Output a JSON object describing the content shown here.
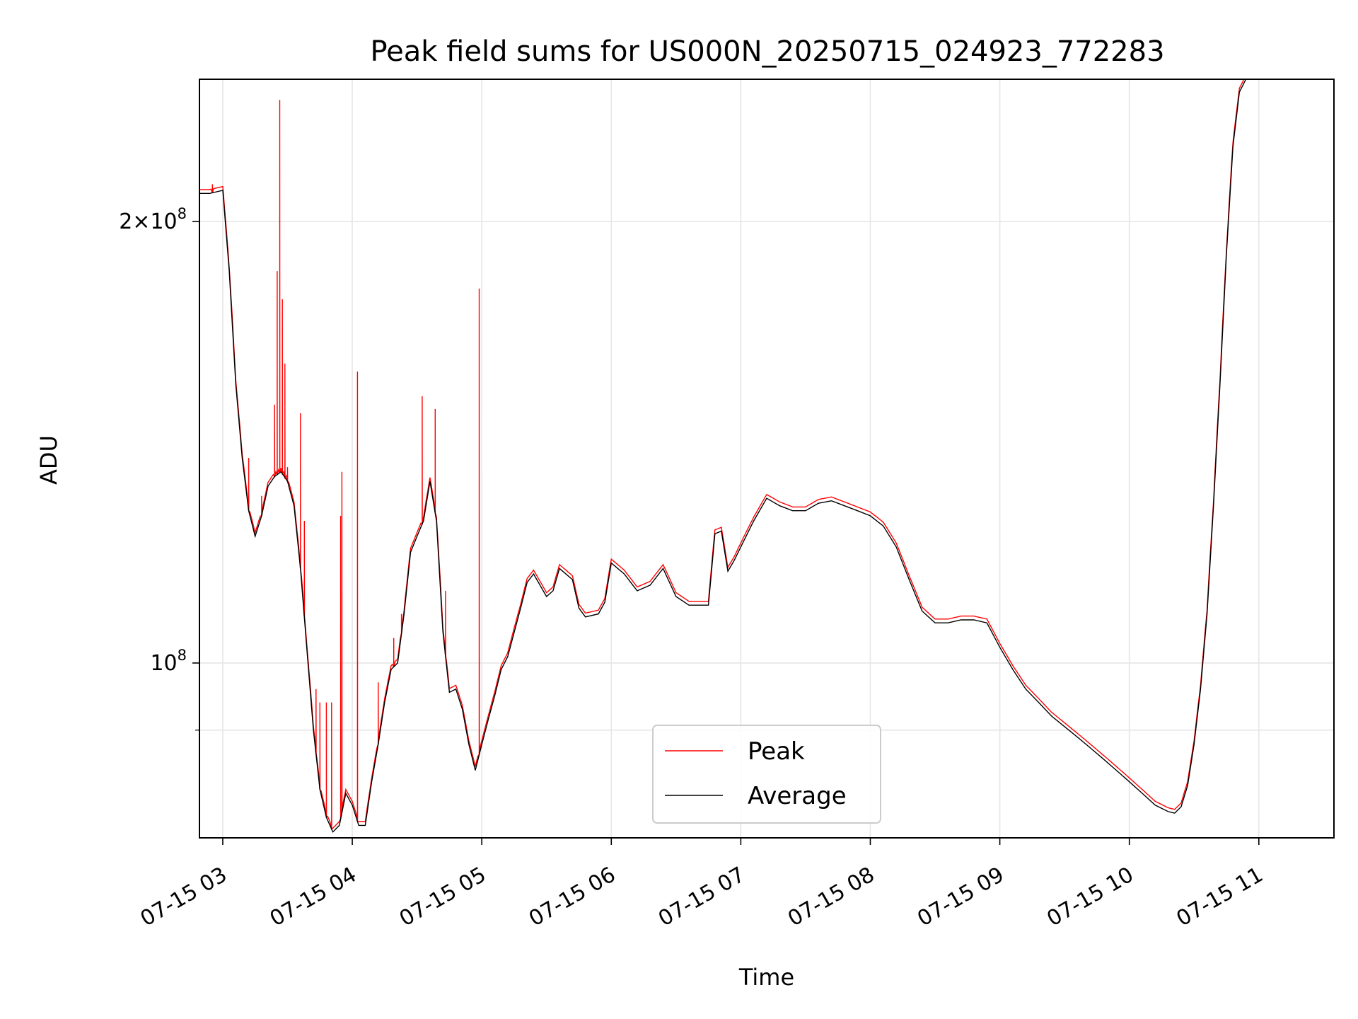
{
  "chart_data": {
    "type": "line",
    "title": "Peak field sums for US000N_20250715_024923_772283",
    "xlabel": "Time",
    "ylabel": "ADU",
    "x_tick_labels": [
      "07-15 03",
      "07-15 04",
      "07-15 05",
      "07-15 06",
      "07-15 07",
      "07-15 08",
      "07-15 09",
      "07-15 10",
      "07-15 11"
    ],
    "y_tick_labels": [
      {
        "value": 100000000,
        "base": "10",
        "exp": "8",
        "coef": ""
      },
      {
        "value": 200000000,
        "base": "10",
        "exp": "8",
        "coef": "2×"
      }
    ],
    "y_scale": "log",
    "x_range_hours": [
      2.82,
      11.58
    ],
    "y_range": [
      76000000,
      250000000
    ],
    "grid": true,
    "legend": {
      "position": "lower-center",
      "entries": [
        "Peak",
        "Average"
      ]
    },
    "x_unit": "hour of 2025-07-15 (UTC)",
    "series": [
      {
        "name": "Average",
        "color": "#000000",
        "points": [
          [
            2.82,
            209000000.0
          ],
          [
            2.9,
            209000000.0
          ],
          [
            3.0,
            210000000.0
          ],
          [
            3.05,
            185000000.0
          ],
          [
            3.1,
            155000000.0
          ],
          [
            3.15,
            138000000.0
          ],
          [
            3.2,
            127000000.0
          ],
          [
            3.25,
            122000000.0
          ],
          [
            3.3,
            126000000.0
          ],
          [
            3.35,
            132000000.0
          ],
          [
            3.4,
            134000000.0
          ],
          [
            3.45,
            135000000.0
          ],
          [
            3.5,
            133000000.0
          ],
          [
            3.55,
            128000000.0
          ],
          [
            3.6,
            116000000.0
          ],
          [
            3.65,
            102000000.0
          ],
          [
            3.7,
            90000000.0
          ],
          [
            3.75,
            82000000.0
          ],
          [
            3.8,
            78500000.0
          ],
          [
            3.85,
            76700000.0
          ],
          [
            3.9,
            77500000.0
          ],
          [
            3.95,
            81500000.0
          ],
          [
            4.0,
            80000000.0
          ],
          [
            4.05,
            77500000.0
          ],
          [
            4.1,
            77500000.0
          ],
          [
            4.15,
            83000000.0
          ],
          [
            4.2,
            88000000.0
          ],
          [
            4.25,
            94000000.0
          ],
          [
            4.3,
            99000000.0
          ],
          [
            4.35,
            100000000.0
          ],
          [
            4.4,
            108000000.0
          ],
          [
            4.45,
            119000000.0
          ],
          [
            4.5,
            122000000.0
          ],
          [
            4.55,
            125000000.0
          ],
          [
            4.6,
            133000000.0
          ],
          [
            4.65,
            125000000.0
          ],
          [
            4.7,
            105000000.0
          ],
          [
            4.75,
            95500000.0
          ],
          [
            4.8,
            96000000.0
          ],
          [
            4.85,
            93000000.0
          ],
          [
            4.9,
            88000000.0
          ],
          [
            4.95,
            84500000.0
          ],
          [
            5.0,
            88000000.0
          ],
          [
            5.05,
            91500000.0
          ],
          [
            5.1,
            95000000.0
          ],
          [
            5.15,
            99000000.0
          ],
          [
            5.2,
            101000000.0
          ],
          [
            5.3,
            109000000.0
          ],
          [
            5.35,
            113500000.0
          ],
          [
            5.4,
            115000000.0
          ],
          [
            5.5,
            111000000.0
          ],
          [
            5.55,
            112000000.0
          ],
          [
            5.6,
            116000000.0
          ],
          [
            5.7,
            114000000.0
          ],
          [
            5.75,
            109000000.0
          ],
          [
            5.8,
            107500000.0
          ],
          [
            5.9,
            108000000.0
          ],
          [
            5.95,
            110000000.0
          ],
          [
            6.0,
            117000000.0
          ],
          [
            6.1,
            115000000.0
          ],
          [
            6.2,
            112000000.0
          ],
          [
            6.3,
            113000000.0
          ],
          [
            6.4,
            116000000.0
          ],
          [
            6.5,
            111000000.0
          ],
          [
            6.6,
            109500000.0
          ],
          [
            6.75,
            109500000.0
          ],
          [
            6.8,
            122500000.0
          ],
          [
            6.85,
            123000000.0
          ],
          [
            6.9,
            115500000.0
          ],
          [
            6.95,
            117500000.0
          ],
          [
            7.0,
            120000000.0
          ],
          [
            7.1,
            125000000.0
          ],
          [
            7.2,
            129500000.0
          ],
          [
            7.3,
            128000000.0
          ],
          [
            7.4,
            127000000.0
          ],
          [
            7.5,
            127000000.0
          ],
          [
            7.6,
            128500000.0
          ],
          [
            7.7,
            129000000.0
          ],
          [
            7.8,
            128000000.0
          ],
          [
            7.9,
            127000000.0
          ],
          [
            8.0,
            126000000.0
          ],
          [
            8.1,
            124000000.0
          ],
          [
            8.2,
            120000000.0
          ],
          [
            8.3,
            114000000.0
          ],
          [
            8.4,
            108500000.0
          ],
          [
            8.5,
            106500000.0
          ],
          [
            8.6,
            106500000.0
          ],
          [
            8.7,
            107000000.0
          ],
          [
            8.8,
            107000000.0
          ],
          [
            8.9,
            106500000.0
          ],
          [
            9.0,
            102500000.0
          ],
          [
            9.1,
            99000000.0
          ],
          [
            9.2,
            96000000.0
          ],
          [
            9.3,
            94000000.0
          ],
          [
            9.4,
            92000000.0
          ],
          [
            9.5,
            90500000.0
          ],
          [
            9.6,
            89000000.0
          ],
          [
            9.7,
            87500000.0
          ],
          [
            9.8,
            86000000.0
          ],
          [
            9.9,
            84500000.0
          ],
          [
            10.0,
            83000000.0
          ],
          [
            10.1,
            81500000.0
          ],
          [
            10.2,
            80000000.0
          ],
          [
            10.3,
            79200000.0
          ],
          [
            10.35,
            79000000.0
          ],
          [
            10.4,
            79800000.0
          ],
          [
            10.45,
            82500000.0
          ],
          [
            10.5,
            88000000.0
          ],
          [
            10.55,
            96000000.0
          ],
          [
            10.6,
            108000000.0
          ],
          [
            10.65,
            128000000.0
          ],
          [
            10.7,
            155000000.0
          ],
          [
            10.75,
            190000000.0
          ],
          [
            10.8,
            225000000.0
          ],
          [
            10.85,
            245000000.0
          ],
          [
            10.9,
            250000000.0
          ]
        ]
      },
      {
        "name": "Peak",
        "color": "#ff0000",
        "spikes": [
          [
            2.92,
            212000000.0
          ],
          [
            3.2,
            138000000.0
          ],
          [
            3.3,
            130000000.0
          ],
          [
            3.4,
            150000000.0
          ],
          [
            3.42,
            185000000.0
          ],
          [
            3.44,
            242000000.0
          ],
          [
            3.46,
            177000000.0
          ],
          [
            3.48,
            160000000.0
          ],
          [
            3.5,
            136000000.0
          ],
          [
            3.6,
            148000000.0
          ],
          [
            3.63,
            125000000.0
          ],
          [
            3.72,
            96000000.0
          ],
          [
            3.75,
            94000000.0
          ],
          [
            3.8,
            94000000.0
          ],
          [
            3.84,
            94000000.0
          ],
          [
            3.91,
            126000000.0
          ],
          [
            3.92,
            135000000.0
          ],
          [
            4.04,
            158000000.0
          ],
          [
            4.2,
            97000000.0
          ],
          [
            4.32,
            104000000.0
          ],
          [
            4.38,
            108000000.0
          ],
          [
            4.54,
            152000000.0
          ],
          [
            4.64,
            149000000.0
          ],
          [
            4.72,
            112000000.0
          ],
          [
            4.98,
            180000000.0
          ]
        ]
      }
    ]
  }
}
